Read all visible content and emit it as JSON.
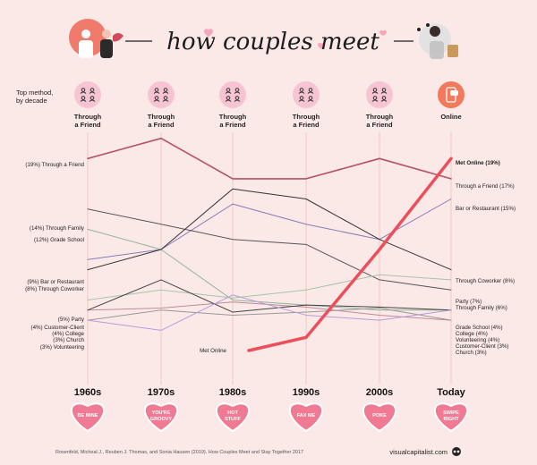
{
  "title": "how couples meet",
  "top_label": [
    "Top method,",
    "by decade"
  ],
  "top_methods": [
    {
      "lines": [
        "Through",
        "a Friend"
      ],
      "icon": "group-icon"
    },
    {
      "lines": [
        "Through",
        "a Friend"
      ],
      "icon": "group-icon"
    },
    {
      "lines": [
        "Through",
        "a Friend"
      ],
      "icon": "group-icon"
    },
    {
      "lines": [
        "Through",
        "a Friend"
      ],
      "icon": "group-icon"
    },
    {
      "lines": [
        "Through",
        "a Friend"
      ],
      "icon": "group-icon"
    },
    {
      "lines": [
        "Online"
      ],
      "icon": "phone-chat-icon"
    }
  ],
  "hearts": [
    "BE MINE",
    "YOU'RE GROOVY",
    "HOT STUFF",
    "FAX ME",
    "POKE",
    "SWIPE RIGHT"
  ],
  "footer": {
    "source": "Rosenfeld, Micheal J., Reuben J. Thomas, and Sonia Hausen (2019). How Couples Meet and Stay Together 2017",
    "brand": "visualcapitalist.com"
  },
  "colors": {
    "background": "#fbe9e7",
    "heart": "#f07a93",
    "online": "#ea4f5b",
    "friend": "#b4506a",
    "icon_bg": "#f6c4d2"
  },
  "chart_data": {
    "type": "line",
    "categories": [
      "1960s",
      "1970s",
      "1980s",
      "1990s",
      "2000s",
      "Today"
    ],
    "series": [
      {
        "name": "Through a Friend",
        "start_label": "(19%) Through a Friend",
        "end_label": "Through a Friend (17%)",
        "values": [
          19,
          21,
          17,
          17,
          19,
          17
        ],
        "color": "#b4506a",
        "width": 1.6
      },
      {
        "name": "Met Online",
        "start_label": "Met Online",
        "end_label": "Met Online (19%)",
        "values": [
          0,
          null,
          null,
          1.3,
          10,
          19
        ],
        "color": "#ea4f5b",
        "width": 3.5
      },
      {
        "name": "Bar or Restaurant",
        "start_label": "(9%) Bar or Restaurant",
        "end_label": "Bar or Restaurant (15%)",
        "values": [
          9,
          10,
          14.5,
          12.5,
          11,
          15
        ],
        "color": "#8a7ab8",
        "width": 1
      },
      {
        "name": "Through Family",
        "start_label": "(14%) Through Family",
        "end_label": "Through Family (6%)",
        "values": [
          14,
          12.5,
          11,
          10.5,
          7,
          6
        ],
        "color": "#555555",
        "width": 1
      },
      {
        "name": "Grade School",
        "start_label": "(12%) Grade School",
        "end_label": "Grade School (4%)",
        "values": [
          12,
          10,
          5,
          4.5,
          4,
          4
        ],
        "color": "#8fb59a",
        "width": 1
      },
      {
        "name": "Through Coworker",
        "start_label": "(8%) Through Coworker",
        "end_label": "Through Coworker (8%)",
        "values": [
          8,
          10,
          16,
          15,
          11,
          8
        ],
        "color": "#333333",
        "width": 1
      },
      {
        "name": "Party",
        "start_label": "(5%) Party",
        "end_label": "Party (7%)",
        "values": [
          5,
          6,
          5.2,
          6,
          7.5,
          7
        ],
        "color": "#a7c4a9",
        "width": 1
      },
      {
        "name": "Customer-Client",
        "start_label": "(4%) Customer-Client",
        "end_label": "Customer-Client (3%)",
        "values": [
          4,
          4.2,
          4.8,
          4.3,
          3.5,
          3
        ],
        "color": "#c08a9c",
        "width": 1
      },
      {
        "name": "College",
        "start_label": "(4%) College",
        "end_label": "College (4%)",
        "values": [
          4,
          7,
          3.8,
          4.5,
          4.3,
          4
        ],
        "color": "#444444",
        "width": 1
      },
      {
        "name": "Church",
        "start_label": "(3%) Church",
        "end_label": "Church (3%)",
        "values": [
          3,
          4,
          3.5,
          3.8,
          4.2,
          3
        ],
        "color": "#999999",
        "width": 1
      },
      {
        "name": "Volunteering",
        "start_label": "(3%) Volunteering",
        "end_label": "Volunteering (4%)",
        "values": [
          3,
          2,
          5.5,
          3.5,
          3,
          4
        ],
        "color": "#b39ddb",
        "width": 1
      }
    ]
  }
}
